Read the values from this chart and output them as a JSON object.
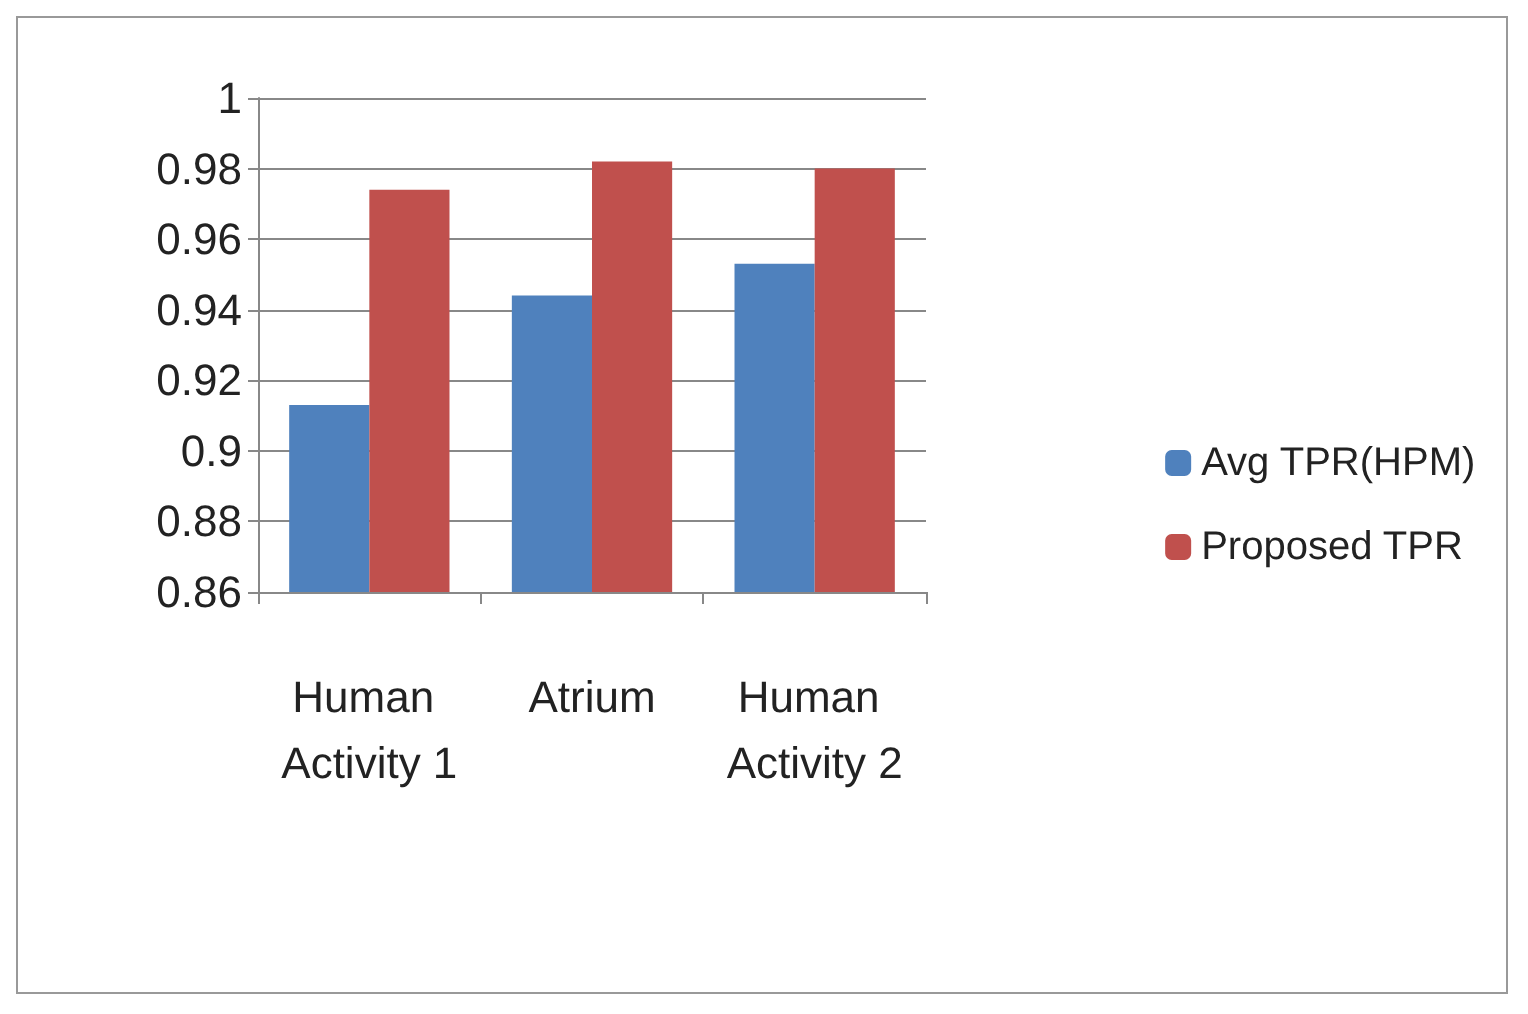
{
  "chart_data": {
    "type": "bar",
    "categories": [
      "Human Activity 1",
      "Atrium",
      "Human Activity 2"
    ],
    "series": [
      {
        "name": "Avg TPR(HPM)",
        "color": "#4f81bd",
        "values": [
          0.913,
          0.944,
          0.953
        ]
      },
      {
        "name": "Proposed TPR",
        "color": "#c0504d",
        "values": [
          0.974,
          0.982,
          0.98
        ]
      }
    ],
    "ylim": [
      0.86,
      1
    ],
    "yticks": [
      0.86,
      0.88,
      0.9,
      0.92,
      0.94,
      0.96,
      0.98,
      1
    ],
    "grid": "y",
    "legend": "right"
  }
}
